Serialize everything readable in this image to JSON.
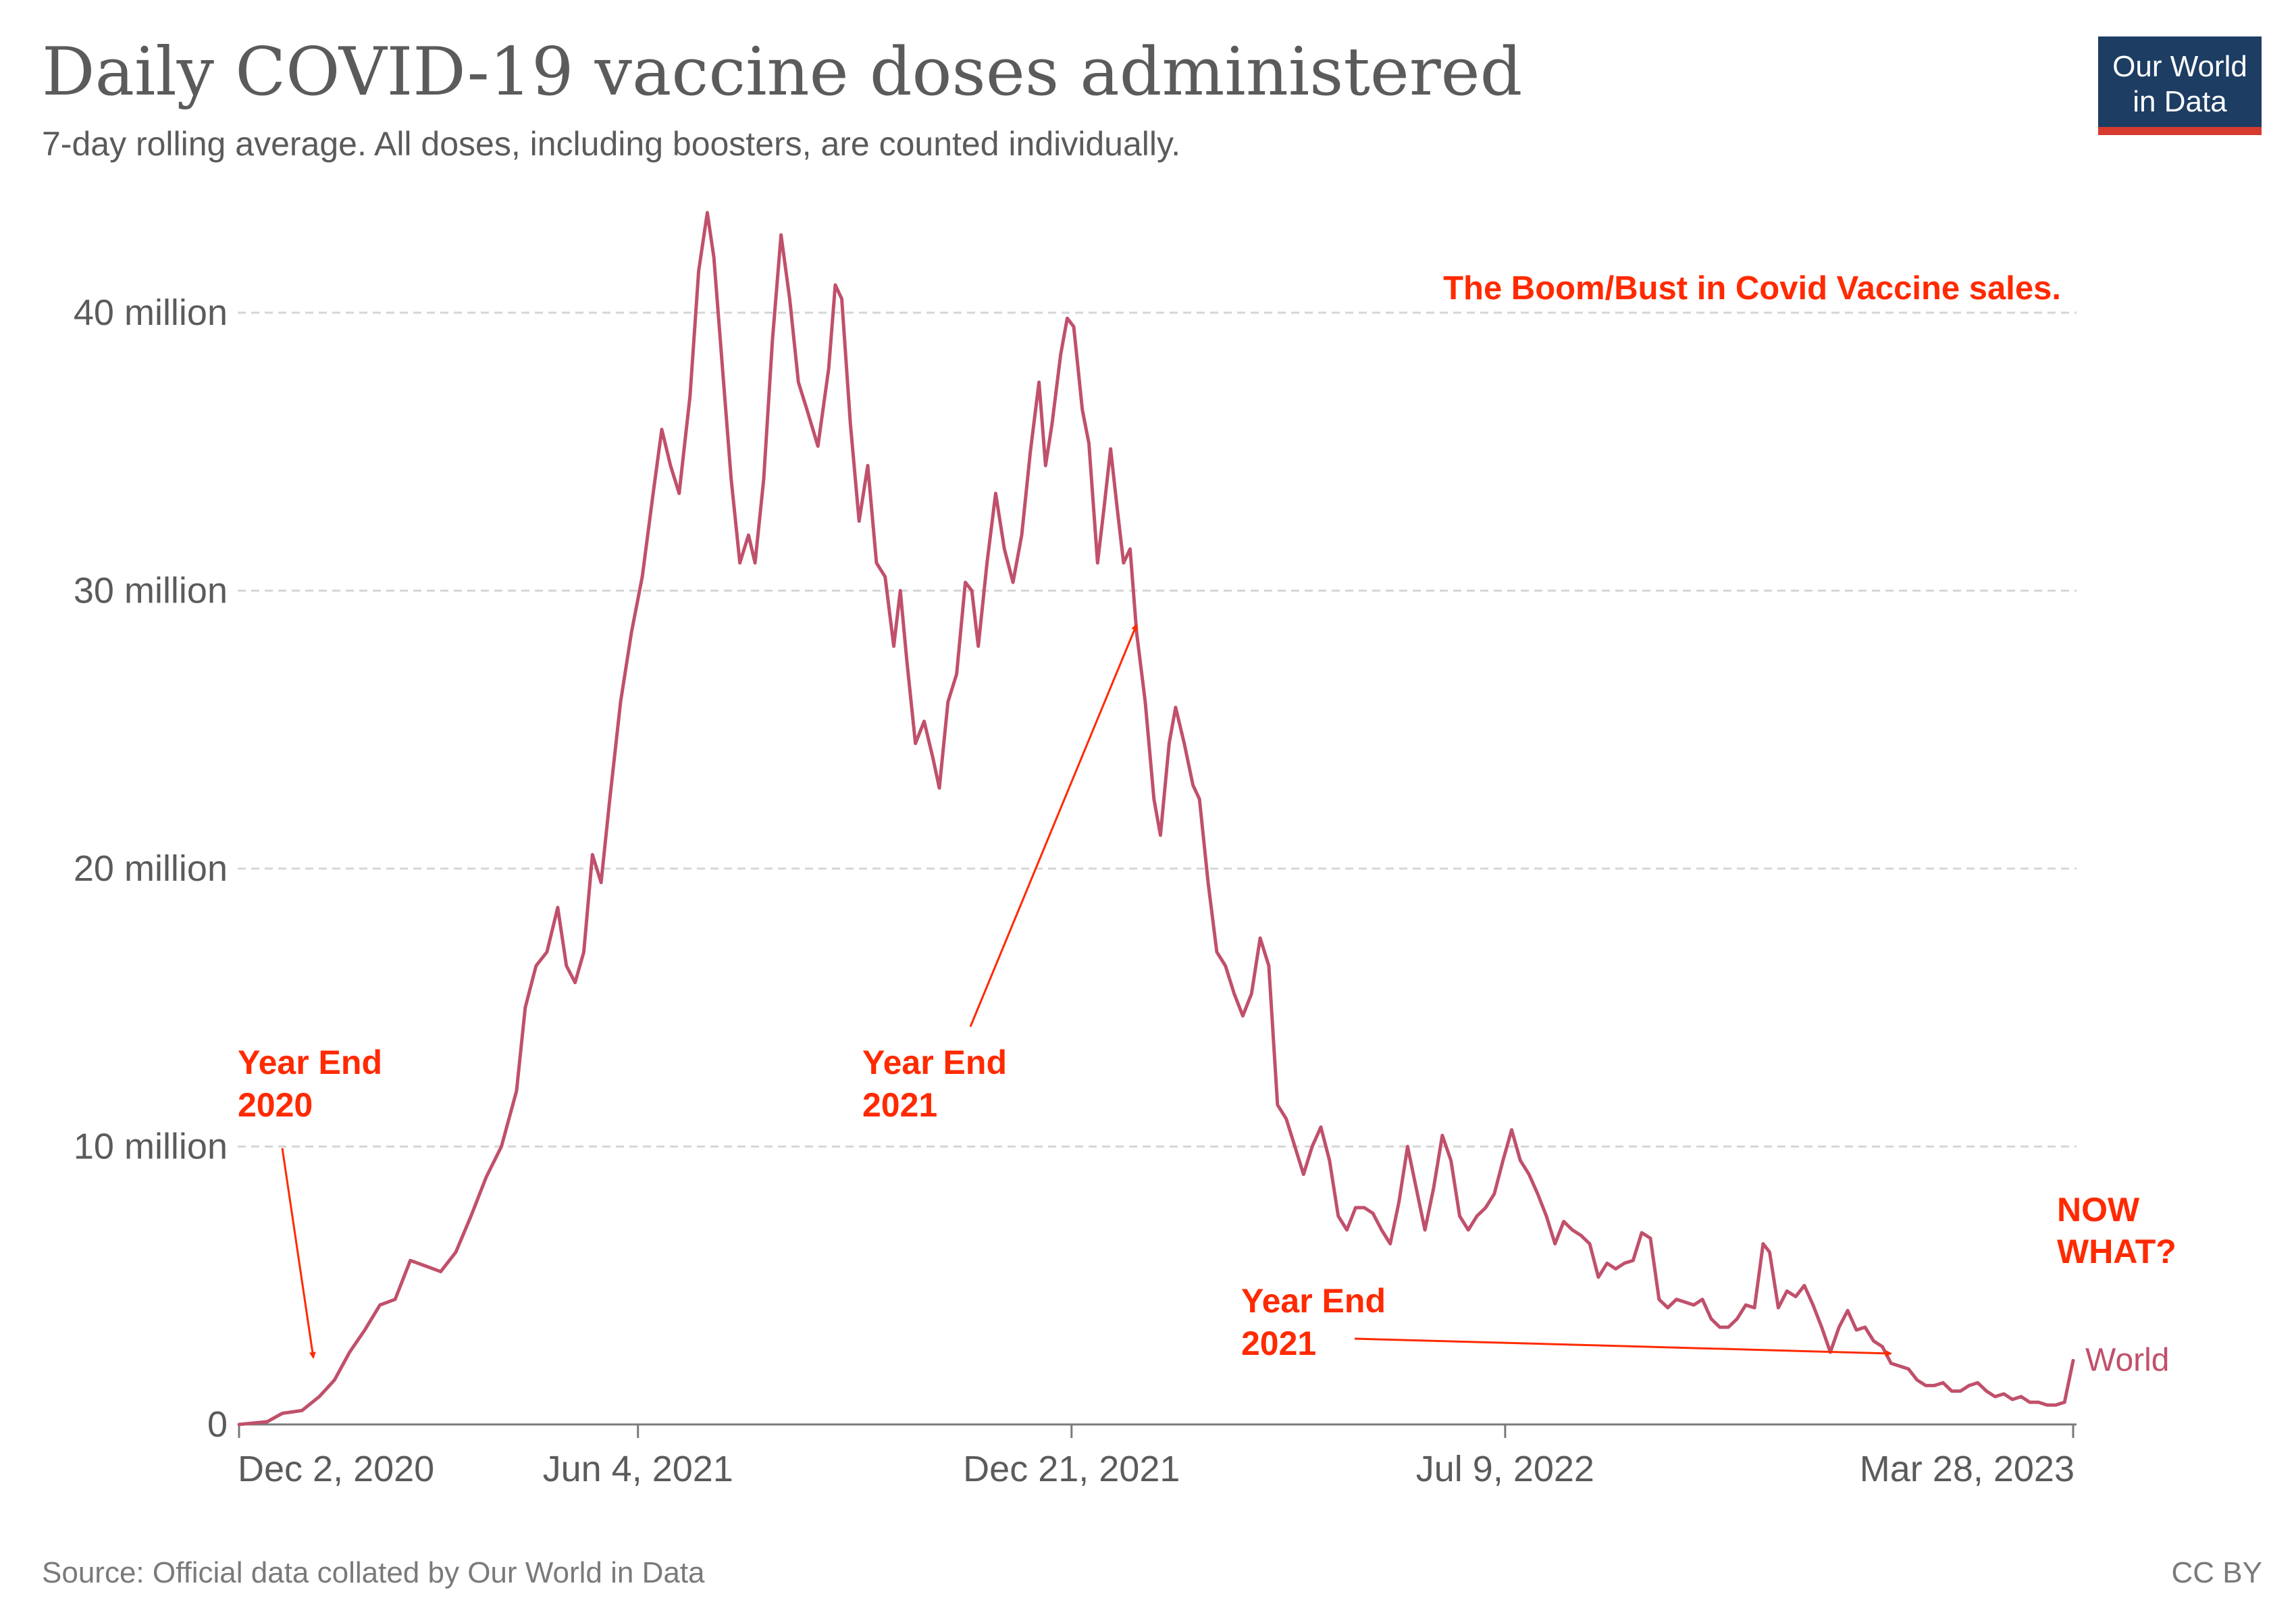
{
  "header": {
    "title": "Daily COVID-19 vaccine doses administered",
    "subtitle": "7-day rolling average. All doses, including boosters, are counted individually.",
    "logo_line1": "Our World",
    "logo_line2": "in Data"
  },
  "footer": {
    "source": "Source: Official data collated by Our World in Data",
    "license": "CC BY"
  },
  "colors": {
    "series": "#c0506b",
    "annotation": "#ff2a00",
    "logo_bg": "#1d3d63",
    "logo_accent": "#d73a2e"
  },
  "annotations": {
    "headline": "The Boom/Bust in Covid Vaccine sales.",
    "ye2020_line1": "Year End",
    "ye2020_line2": "2020",
    "ye2021a_line1": "Year End",
    "ye2021a_line2": "2021",
    "ye2021b_line1": "Year End",
    "ye2021b_line2": "2021",
    "now_line1": "NOW",
    "now_line2": "WHAT?"
  },
  "chart_data": {
    "type": "line",
    "title": "Daily COVID-19 vaccine doses administered",
    "subtitle": "7-day rolling average. All doses, including boosters, are counted individually.",
    "x_tick_labels": [
      "Dec 2, 2020",
      "Jun 4, 2021",
      "Dec 21, 2021",
      "Jul 9, 2022",
      "Mar 28, 2023"
    ],
    "x_tick_dates": [
      "2020-12-02",
      "2021-06-04",
      "2021-12-21",
      "2022-07-09",
      "2023-03-28"
    ],
    "y_tick_labels": [
      "0",
      "10 million",
      "20 million",
      "30 million",
      "40 million"
    ],
    "y_tick_values": [
      0,
      10,
      20,
      30,
      40
    ],
    "ylabel": "",
    "y_unit": "million doses",
    "ylim": [
      0,
      44
    ],
    "xlim": [
      "2020-12-02",
      "2023-03-28"
    ],
    "grid": true,
    "series": [
      {
        "name": "World",
        "points": [
          [
            "2020-12-02",
            0.0
          ],
          [
            "2020-12-15",
            0.1
          ],
          [
            "2020-12-22",
            0.4
          ],
          [
            "2020-12-31",
            0.5
          ],
          [
            "2021-01-08",
            1.0
          ],
          [
            "2021-01-15",
            1.6
          ],
          [
            "2021-01-22",
            2.6
          ],
          [
            "2021-01-29",
            3.4
          ],
          [
            "2021-02-05",
            4.3
          ],
          [
            "2021-02-12",
            4.5
          ],
          [
            "2021-02-19",
            5.9
          ],
          [
            "2021-02-26",
            5.7
          ],
          [
            "2021-03-05",
            5.5
          ],
          [
            "2021-03-12",
            6.2
          ],
          [
            "2021-03-19",
            7.5
          ],
          [
            "2021-03-26",
            8.9
          ],
          [
            "2021-04-02",
            10.0
          ],
          [
            "2021-04-09",
            12.0
          ],
          [
            "2021-04-13",
            15.0
          ],
          [
            "2021-04-18",
            16.5
          ],
          [
            "2021-04-23",
            17.0
          ],
          [
            "2021-04-28",
            18.6
          ],
          [
            "2021-05-02",
            16.5
          ],
          [
            "2021-05-06",
            15.9
          ],
          [
            "2021-05-10",
            17.0
          ],
          [
            "2021-05-14",
            20.5
          ],
          [
            "2021-05-18",
            19.5
          ],
          [
            "2021-05-22",
            22.5
          ],
          [
            "2021-05-27",
            26.0
          ],
          [
            "2021-06-01",
            28.5
          ],
          [
            "2021-06-06",
            30.5
          ],
          [
            "2021-06-11",
            33.5
          ],
          [
            "2021-06-15",
            35.8
          ],
          [
            "2021-06-19",
            34.5
          ],
          [
            "2021-06-23",
            33.5
          ],
          [
            "2021-06-28",
            37.0
          ],
          [
            "2021-07-02",
            41.5
          ],
          [
            "2021-07-06",
            43.6
          ],
          [
            "2021-07-09",
            42.0
          ],
          [
            "2021-07-13",
            38.0
          ],
          [
            "2021-07-17",
            34.0
          ],
          [
            "2021-07-21",
            31.0
          ],
          [
            "2021-07-25",
            32.0
          ],
          [
            "2021-07-28",
            31.0
          ],
          [
            "2021-08-01",
            34.0
          ],
          [
            "2021-08-05",
            39.0
          ],
          [
            "2021-08-09",
            42.8
          ],
          [
            "2021-08-13",
            40.5
          ],
          [
            "2021-08-17",
            37.5
          ],
          [
            "2021-08-21",
            36.5
          ],
          [
            "2021-08-26",
            35.2
          ],
          [
            "2021-08-31",
            38.0
          ],
          [
            "2021-09-03",
            41.0
          ],
          [
            "2021-09-06",
            40.5
          ],
          [
            "2021-09-10",
            36.0
          ],
          [
            "2021-09-14",
            32.5
          ],
          [
            "2021-09-18",
            34.5
          ],
          [
            "2021-09-22",
            31.0
          ],
          [
            "2021-09-26",
            30.5
          ],
          [
            "2021-09-30",
            28.0
          ],
          [
            "2021-10-03",
            30.0
          ],
          [
            "2021-10-06",
            27.5
          ],
          [
            "2021-10-10",
            24.5
          ],
          [
            "2021-10-14",
            25.3
          ],
          [
            "2021-10-18",
            24.0
          ],
          [
            "2021-10-21",
            22.9
          ],
          [
            "2021-10-25",
            26.0
          ],
          [
            "2021-10-29",
            27.0
          ],
          [
            "2021-11-02",
            30.3
          ],
          [
            "2021-11-05",
            30.0
          ],
          [
            "2021-11-08",
            28.0
          ],
          [
            "2021-11-12",
            31.0
          ],
          [
            "2021-11-16",
            33.5
          ],
          [
            "2021-11-20",
            31.5
          ],
          [
            "2021-11-24",
            30.3
          ],
          [
            "2021-11-28",
            32.0
          ],
          [
            "2021-12-02",
            35.0
          ],
          [
            "2021-12-06",
            37.5
          ],
          [
            "2021-12-09",
            34.5
          ],
          [
            "2021-12-12",
            36.0
          ],
          [
            "2021-12-16",
            38.5
          ],
          [
            "2021-12-19",
            39.8
          ],
          [
            "2021-12-22",
            39.5
          ],
          [
            "2021-12-26",
            36.5
          ],
          [
            "2021-12-29",
            35.3
          ],
          [
            "2022-01-02",
            31.0
          ],
          [
            "2022-01-05",
            33.0
          ],
          [
            "2022-01-08",
            35.1
          ],
          [
            "2022-01-11",
            33.0
          ],
          [
            "2022-01-14",
            31.0
          ],
          [
            "2022-01-17",
            31.5
          ],
          [
            "2022-01-20",
            28.5
          ],
          [
            "2022-01-24",
            26.0
          ],
          [
            "2022-01-28",
            22.5
          ],
          [
            "2022-01-31",
            21.2
          ],
          [
            "2022-02-04",
            24.5
          ],
          [
            "2022-02-07",
            25.8
          ],
          [
            "2022-02-11",
            24.5
          ],
          [
            "2022-02-15",
            23.0
          ],
          [
            "2022-02-18",
            22.5
          ],
          [
            "2022-02-22",
            19.5
          ],
          [
            "2022-02-26",
            17.0
          ],
          [
            "2022-03-02",
            16.5
          ],
          [
            "2022-03-06",
            15.5
          ],
          [
            "2022-03-10",
            14.7
          ],
          [
            "2022-03-14",
            15.5
          ],
          [
            "2022-03-18",
            17.5
          ],
          [
            "2022-03-22",
            16.5
          ],
          [
            "2022-03-26",
            11.5
          ],
          [
            "2022-03-30",
            11.0
          ],
          [
            "2022-04-03",
            10.0
          ],
          [
            "2022-04-07",
            9.0
          ],
          [
            "2022-04-11",
            10.0
          ],
          [
            "2022-04-15",
            10.7
          ],
          [
            "2022-04-19",
            9.5
          ],
          [
            "2022-04-23",
            7.5
          ],
          [
            "2022-04-27",
            7.0
          ],
          [
            "2022-05-01",
            7.8
          ],
          [
            "2022-05-05",
            7.8
          ],
          [
            "2022-05-09",
            7.6
          ],
          [
            "2022-05-13",
            7.0
          ],
          [
            "2022-05-17",
            6.5
          ],
          [
            "2022-05-21",
            8.0
          ],
          [
            "2022-05-25",
            10.0
          ],
          [
            "2022-05-29",
            8.5
          ],
          [
            "2022-06-02",
            7.0
          ],
          [
            "2022-06-06",
            8.5
          ],
          [
            "2022-06-10",
            10.4
          ],
          [
            "2022-06-14",
            9.5
          ],
          [
            "2022-06-18",
            7.5
          ],
          [
            "2022-06-22",
            7.0
          ],
          [
            "2022-06-26",
            7.5
          ],
          [
            "2022-06-30",
            7.8
          ],
          [
            "2022-07-04",
            8.3
          ],
          [
            "2022-07-08",
            9.5
          ],
          [
            "2022-07-12",
            10.6
          ],
          [
            "2022-07-16",
            9.5
          ],
          [
            "2022-07-20",
            9.0
          ],
          [
            "2022-07-24",
            8.3
          ],
          [
            "2022-07-28",
            7.5
          ],
          [
            "2022-08-01",
            6.5
          ],
          [
            "2022-08-05",
            7.3
          ],
          [
            "2022-08-09",
            7.0
          ],
          [
            "2022-08-13",
            6.8
          ],
          [
            "2022-08-17",
            6.5
          ],
          [
            "2022-08-21",
            5.3
          ],
          [
            "2022-08-25",
            5.8
          ],
          [
            "2022-08-29",
            5.6
          ],
          [
            "2022-09-02",
            5.8
          ],
          [
            "2022-09-06",
            5.9
          ],
          [
            "2022-09-10",
            6.9
          ],
          [
            "2022-09-14",
            6.7
          ],
          [
            "2022-09-18",
            4.5
          ],
          [
            "2022-09-22",
            4.2
          ],
          [
            "2022-09-26",
            4.5
          ],
          [
            "2022-09-30",
            4.4
          ],
          [
            "2022-10-04",
            4.3
          ],
          [
            "2022-10-08",
            4.5
          ],
          [
            "2022-10-12",
            3.8
          ],
          [
            "2022-10-16",
            3.5
          ],
          [
            "2022-10-20",
            3.5
          ],
          [
            "2022-10-24",
            3.8
          ],
          [
            "2022-10-28",
            4.3
          ],
          [
            "2022-11-01",
            4.2
          ],
          [
            "2022-11-05",
            6.5
          ],
          [
            "2022-11-08",
            6.2
          ],
          [
            "2022-11-12",
            4.2
          ],
          [
            "2022-11-16",
            4.8
          ],
          [
            "2022-11-20",
            4.6
          ],
          [
            "2022-11-24",
            5.0
          ],
          [
            "2022-11-28",
            4.3
          ],
          [
            "2022-12-02",
            3.5
          ],
          [
            "2022-12-06",
            2.6
          ],
          [
            "2022-12-10",
            3.5
          ],
          [
            "2022-12-14",
            4.1
          ],
          [
            "2022-12-18",
            3.4
          ],
          [
            "2022-12-22",
            3.5
          ],
          [
            "2022-12-26",
            3.0
          ],
          [
            "2022-12-30",
            2.8
          ],
          [
            "2023-01-03",
            2.2
          ],
          [
            "2023-01-07",
            2.1
          ],
          [
            "2023-01-11",
            2.0
          ],
          [
            "2023-01-15",
            1.6
          ],
          [
            "2023-01-19",
            1.4
          ],
          [
            "2023-01-23",
            1.4
          ],
          [
            "2023-01-27",
            1.5
          ],
          [
            "2023-01-31",
            1.2
          ],
          [
            "2023-02-04",
            1.2
          ],
          [
            "2023-02-08",
            1.4
          ],
          [
            "2023-02-12",
            1.5
          ],
          [
            "2023-02-16",
            1.2
          ],
          [
            "2023-02-20",
            1.0
          ],
          [
            "2023-02-24",
            1.1
          ],
          [
            "2023-02-28",
            0.9
          ],
          [
            "2023-03-04",
            1.0
          ],
          [
            "2023-03-08",
            0.8
          ],
          [
            "2023-03-12",
            0.8
          ],
          [
            "2023-03-16",
            0.7
          ],
          [
            "2023-03-20",
            0.7
          ],
          [
            "2023-03-24",
            0.8
          ],
          [
            "2023-03-28",
            2.3
          ]
        ]
      }
    ],
    "annotations": [
      {
        "text": "The Boom/Bust in Covid Vaccine sales."
      },
      {
        "text": "Year End 2020",
        "points_to": [
          "2021-01-11",
          2.1
        ]
      },
      {
        "text": "Year End 2021",
        "points_to": [
          "2022-01-06",
          28.7
        ]
      },
      {
        "text": "Year End 2021",
        "points_to": [
          "2022-12-04",
          2.6
        ]
      },
      {
        "text": "NOW WHAT?"
      }
    ]
  }
}
